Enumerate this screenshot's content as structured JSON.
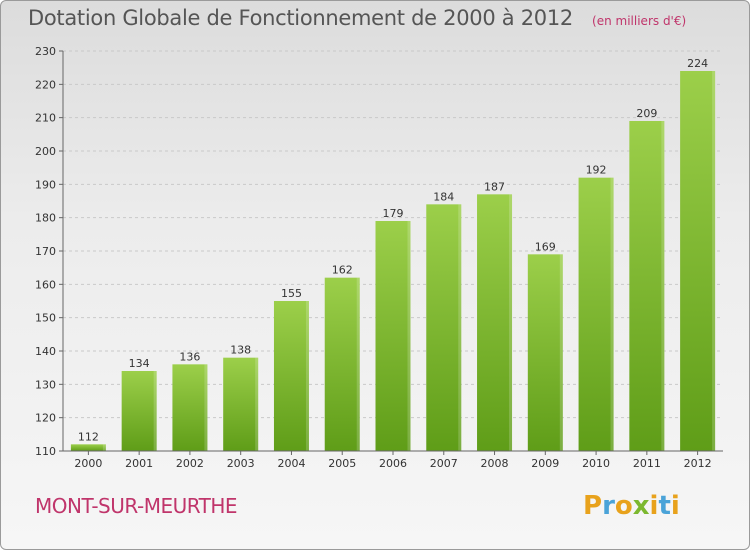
{
  "title": "Dotation Globale de Fonctionnement de 2000 à 2012",
  "subtitle": "(en milliers d'€)",
  "city": "MONT-SUR-MEURTHE",
  "logo": {
    "letters": [
      "P",
      "r",
      "o",
      "x",
      "i",
      "t",
      "i"
    ],
    "colors": [
      "#e8a21c",
      "#4aa3d8",
      "#e8a21c",
      "#7cb82f",
      "#e8a21c",
      "#4aa3d8",
      "#e8a21c"
    ]
  },
  "colors": {
    "bar_top": "#9ccf4a",
    "bar_bottom": "#5f9d18",
    "grid": "#c9c9c9",
    "accent": "#c0356b"
  },
  "chart_data": {
    "type": "bar",
    "title": "Dotation Globale de Fonctionnement de 2000 à 2012",
    "subtitle": "(en milliers d'€)",
    "xlabel": "",
    "ylabel": "",
    "categories": [
      "2000",
      "2001",
      "2002",
      "2003",
      "2004",
      "2005",
      "2006",
      "2007",
      "2008",
      "2009",
      "2010",
      "2011",
      "2012"
    ],
    "values": [
      112,
      134,
      136,
      138,
      155,
      162,
      179,
      184,
      187,
      169,
      192,
      209,
      224
    ],
    "ylim": [
      110,
      230
    ],
    "yticks": [
      110,
      120,
      130,
      140,
      150,
      160,
      170,
      180,
      190,
      200,
      210,
      220,
      230
    ],
    "grid": true,
    "data_labels": true
  }
}
